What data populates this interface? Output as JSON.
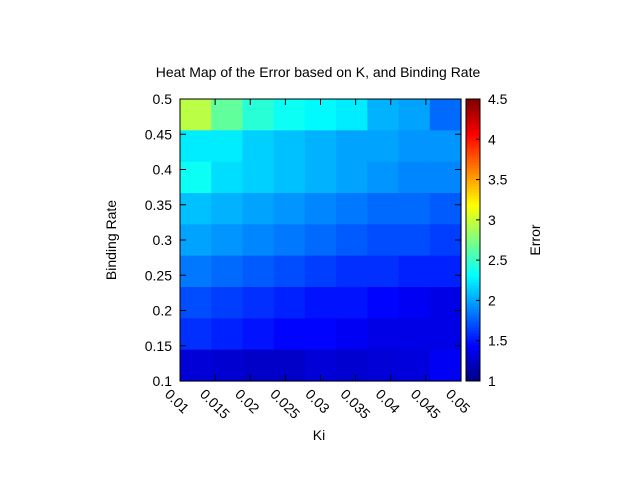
{
  "chart_data": {
    "type": "heatmap",
    "title": "Heat Map of the Error based on K, and Binding Rate",
    "xlabel": "Ki",
    "ylabel": "Binding Rate",
    "colorbar_label": "Error",
    "x_ticks": [
      "0.01",
      "0.015",
      "0.02",
      "0.025",
      "0.03",
      "0.035",
      "0.04",
      "0.045",
      "0.05"
    ],
    "y_ticks": [
      "0.1",
      "0.15",
      "0.2",
      "0.25",
      "0.3",
      "0.35",
      "0.4",
      "0.45",
      "0.5"
    ],
    "colorbar_ticks": [
      "1",
      "1.5",
      "2",
      "2.5",
      "3",
      "3.5",
      "4",
      "4.5"
    ],
    "colorbar_range": [
      1,
      4.5
    ],
    "colormap": "jet",
    "rows_top_to_bottom": [
      [
        2.95,
        2.65,
        2.45,
        2.35,
        2.3,
        2.25,
        2.05,
        2.0,
        1.8
      ],
      [
        2.25,
        2.25,
        2.15,
        2.1,
        2.05,
        2.0,
        2.0,
        1.95,
        1.95
      ],
      [
        2.35,
        2.2,
        2.15,
        2.1,
        2.05,
        2.0,
        1.95,
        1.9,
        1.9
      ],
      [
        2.1,
        2.05,
        2.0,
        1.95,
        1.9,
        1.85,
        1.8,
        1.8,
        1.75
      ],
      [
        2.0,
        1.95,
        1.9,
        1.85,
        1.8,
        1.75,
        1.7,
        1.7,
        1.65
      ],
      [
        1.85,
        1.8,
        1.75,
        1.7,
        1.65,
        1.6,
        1.6,
        1.55,
        1.55
      ],
      [
        1.7,
        1.65,
        1.6,
        1.55,
        1.5,
        1.5,
        1.45,
        1.4,
        1.35
      ],
      [
        1.6,
        1.55,
        1.5,
        1.45,
        1.45,
        1.4,
        1.35,
        1.35,
        1.35
      ],
      [
        1.3,
        1.28,
        1.25,
        1.25,
        1.3,
        1.28,
        1.3,
        1.32,
        1.4
      ]
    ]
  }
}
